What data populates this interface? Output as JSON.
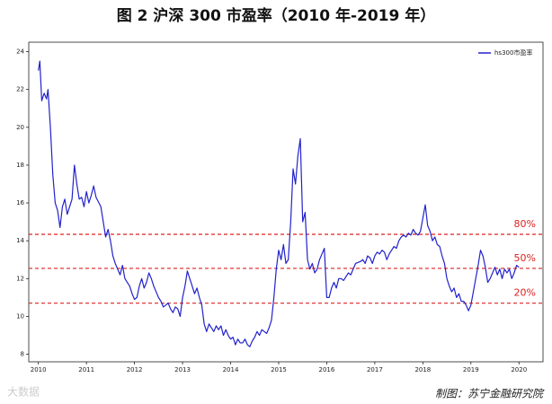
{
  "chart_data": {
    "type": "line",
    "title": "图 2  沪深 300 市盈率（2010 年-2019 年）",
    "x": [
      2010.0,
      2010.03,
      2010.07,
      2010.12,
      2010.17,
      2010.2,
      2010.25,
      2010.3,
      2010.35,
      2010.4,
      2010.45,
      2010.5,
      2010.55,
      2010.6,
      2010.65,
      2010.7,
      2010.75,
      2010.8,
      2010.85,
      2010.9,
      2010.95,
      2011.0,
      2011.05,
      2011.1,
      2011.15,
      2011.2,
      2011.3,
      2011.35,
      2011.4,
      2011.45,
      2011.5,
      2011.55,
      2011.6,
      2011.7,
      2011.75,
      2011.8,
      2011.85,
      2011.9,
      2011.95,
      2012.0,
      2012.05,
      2012.1,
      2012.15,
      2012.2,
      2012.25,
      2012.3,
      2012.35,
      2012.4,
      2012.45,
      2012.5,
      2012.55,
      2012.6,
      2012.7,
      2012.75,
      2012.8,
      2012.85,
      2012.9,
      2012.95,
      2013.0,
      2013.05,
      2013.1,
      2013.15,
      2013.2,
      2013.25,
      2013.3,
      2013.35,
      2013.4,
      2013.45,
      2013.5,
      2013.55,
      2013.6,
      2013.65,
      2013.7,
      2013.75,
      2013.8,
      2013.85,
      2013.9,
      2013.95,
      2014.0,
      2014.05,
      2014.1,
      2014.15,
      2014.2,
      2014.25,
      2014.3,
      2014.35,
      2014.4,
      2014.45,
      2014.5,
      2014.55,
      2014.6,
      2014.65,
      2014.7,
      2014.75,
      2014.8,
      2014.85,
      2014.9,
      2014.95,
      2015.0,
      2015.05,
      2015.1,
      2015.15,
      2015.2,
      2015.25,
      2015.3,
      2015.35,
      2015.4,
      2015.45,
      2015.5,
      2015.55,
      2015.6,
      2015.65,
      2015.7,
      2015.75,
      2015.8,
      2015.85,
      2015.9,
      2015.95,
      2016.0,
      2016.05,
      2016.1,
      2016.15,
      2016.2,
      2016.25,
      2016.3,
      2016.35,
      2016.4,
      2016.45,
      2016.5,
      2016.55,
      2016.6,
      2016.7,
      2016.75,
      2016.8,
      2016.85,
      2016.9,
      2016.95,
      2017.0,
      2017.05,
      2017.1,
      2017.15,
      2017.2,
      2017.25,
      2017.3,
      2017.35,
      2017.4,
      2017.45,
      2017.5,
      2017.55,
      2017.6,
      2017.65,
      2017.7,
      2017.75,
      2017.8,
      2017.85,
      2017.9,
      2017.95,
      2018.0,
      2018.05,
      2018.1,
      2018.15,
      2018.2,
      2018.25,
      2018.3,
      2018.35,
      2018.4,
      2018.45,
      2018.5,
      2018.55,
      2018.6,
      2018.65,
      2018.7,
      2018.75,
      2018.8,
      2018.85,
      2018.9,
      2018.95,
      2019.0,
      2019.05,
      2019.1,
      2019.15,
      2019.2,
      2019.25,
      2019.3,
      2019.35,
      2019.4,
      2019.45,
      2019.5,
      2019.55,
      2019.6,
      2019.65,
      2019.7,
      2019.75,
      2019.8,
      2019.85,
      2019.9,
      2019.95,
      2020.0
    ],
    "series": [
      {
        "name": "hs300市盈率",
        "color": "#2222cc",
        "values": [
          23.0,
          23.5,
          21.4,
          21.8,
          21.5,
          22.0,
          20.0,
          17.5,
          16.0,
          15.6,
          14.7,
          15.8,
          16.2,
          15.4,
          15.8,
          16.2,
          18.0,
          17.0,
          16.2,
          16.3,
          15.8,
          16.6,
          16.0,
          16.4,
          16.9,
          16.3,
          15.8,
          15.0,
          14.2,
          14.6,
          14.0,
          13.2,
          12.8,
          12.2,
          12.7,
          12.0,
          11.8,
          11.6,
          11.2,
          10.9,
          11.0,
          11.6,
          12.0,
          11.5,
          11.8,
          12.3,
          12.0,
          11.6,
          11.3,
          11.0,
          10.8,
          10.5,
          10.7,
          10.4,
          10.2,
          10.5,
          10.4,
          10.0,
          11.0,
          11.6,
          12.4,
          12.0,
          11.6,
          11.2,
          11.5,
          11.0,
          10.6,
          9.6,
          9.2,
          9.6,
          9.4,
          9.2,
          9.5,
          9.3,
          9.5,
          9.0,
          9.3,
          9.0,
          8.8,
          8.9,
          8.5,
          8.8,
          8.6,
          8.6,
          8.8,
          8.5,
          8.4,
          8.7,
          8.9,
          9.2,
          9.0,
          9.3,
          9.2,
          9.1,
          9.4,
          9.8,
          11.0,
          12.5,
          13.5,
          13.0,
          13.8,
          12.8,
          13.0,
          15.0,
          17.8,
          17.0,
          18.5,
          19.4,
          15.0,
          15.5,
          13.0,
          12.5,
          12.8,
          12.3,
          12.5,
          13.0,
          13.3,
          13.6,
          11.0,
          11.0,
          11.5,
          11.8,
          11.5,
          12.0,
          12.0,
          11.9,
          12.1,
          12.3,
          12.2,
          12.5,
          12.8,
          12.9,
          13.0,
          12.8,
          13.2,
          13.1,
          12.8,
          13.2,
          13.4,
          13.3,
          13.5,
          13.4,
          13.0,
          13.3,
          13.5,
          13.7,
          13.6,
          14.0,
          14.2,
          14.3,
          14.2,
          14.4,
          14.3,
          14.6,
          14.4,
          14.3,
          14.5,
          15.2,
          15.9,
          14.8,
          14.5,
          14.0,
          14.2,
          13.8,
          13.7,
          13.2,
          12.8,
          12.0,
          11.6,
          11.3,
          11.5,
          11.0,
          11.2,
          10.8,
          10.8,
          10.6,
          10.3,
          10.6,
          11.3,
          12.0,
          12.7,
          13.5,
          13.2,
          12.6,
          11.8,
          12.0,
          12.3,
          12.6,
          12.2,
          12.5,
          12.0,
          12.5,
          12.3,
          12.5,
          12.0,
          12.3,
          12.7,
          12.6
        ]
      }
    ],
    "xlim": [
      2009.8,
      2020.5
    ],
    "ylim": [
      7.6,
      24.5
    ],
    "xticks": [
      2010,
      2011,
      2012,
      2013,
      2014,
      2015,
      2016,
      2017,
      2018,
      2019,
      2020
    ],
    "yticks": [
      8,
      10,
      12,
      14,
      16,
      18,
      20,
      22,
      24
    ],
    "reference_lines": [
      {
        "value": 14.34,
        "label": "80%",
        "color": "#dd2222"
      },
      {
        "value": 12.54,
        "label": "50%",
        "color": "#dd2222"
      },
      {
        "value": 10.7,
        "label": "20%",
        "color": "#dd2222"
      }
    ],
    "legend": "upper right",
    "footer": "制图：苏宁金融研究院",
    "watermark": "大数据"
  }
}
